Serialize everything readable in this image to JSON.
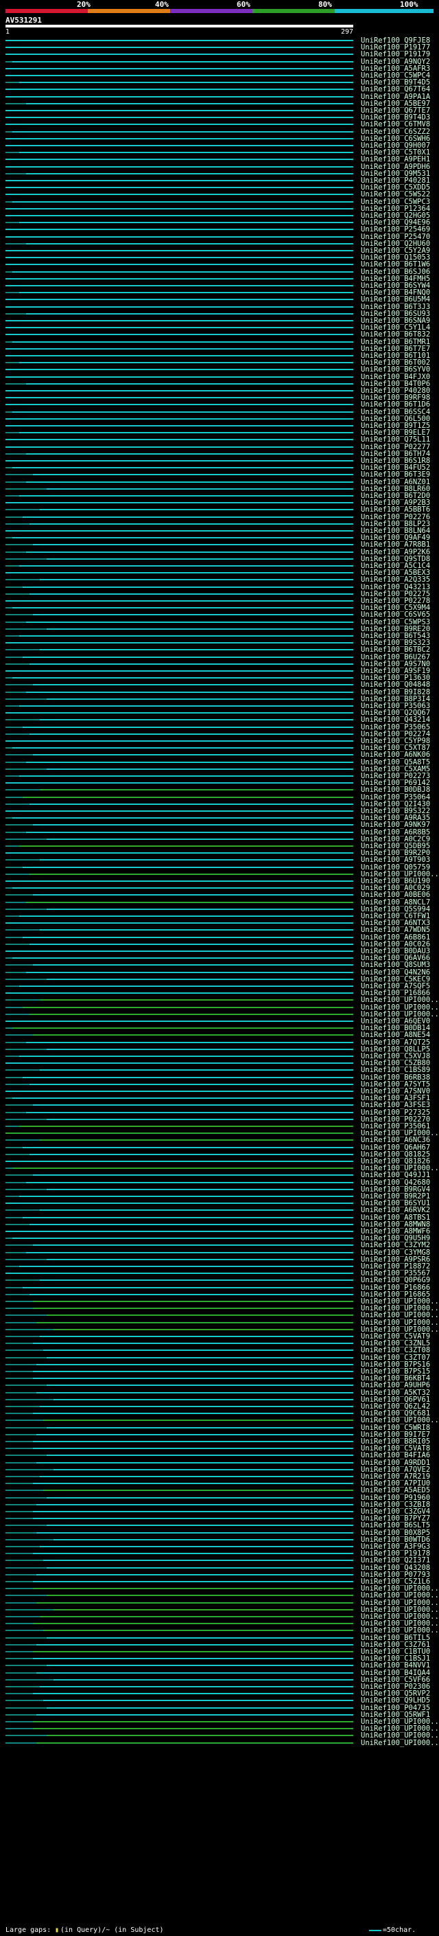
{
  "scale": {
    "ticks": [
      "20%",
      "40%",
      "60%",
      "80%",
      "100%"
    ],
    "colors": [
      "#d6172f",
      "#e07c17",
      "#7b2fbf",
      "#2e9e2a",
      "#19bcd3"
    ]
  },
  "query": {
    "name": "AV531291",
    "start": "1",
    "end": "297"
  },
  "colors": {
    "full": "#17c9c9",
    "partial": "#2ea82e",
    "gap": "#12857f"
  },
  "hits": [
    "UniRef100_Q9FJE8",
    "UniRef100_P19177",
    "UniRef100_P19179",
    "UniRef100_A9NQY2",
    "UniRef100_A5AFR3",
    "UniRef100_C5WPC4",
    "UniRef100_B9T4D5",
    "UniRef100_Q67T64",
    "UniRef100_A9PA1A",
    "UniRef100_A5BE97",
    "UniRef100_Q67TE7",
    "UniRef100_B9T4D3",
    "UniRef100_C6TMV8",
    "UniRef100_C6SZZ2",
    "UniRef100_C6SWH6",
    "UniRef100_Q9H007",
    "UniRef100_C5T0X1",
    "UniRef100_A9PEH1",
    "UniRef100_A9PDH6",
    "UniRef100_Q9M531",
    "UniRef100_P40281",
    "UniRef100_C5XDD5",
    "UniRef100_C5WS22",
    "UniRef100_C5WPC3",
    "UniRef100_P12364",
    "UniRef100_Q2HG05",
    "UniRef100_Q94E96",
    "UniRef100_P25469",
    "UniRef100_P25470",
    "UniRef100_Q2HU60",
    "UniRef100_C5Y2A9",
    "UniRef100_Q15053",
    "UniRef100_B6T1W6",
    "UniRef100_B6SJ06",
    "UniRef100_B4FMH5",
    "UniRef100_B6SYW4",
    "UniRef100_B4FNQ0",
    "UniRef100_B6U5M4",
    "UniRef100_B6T3J3",
    "UniRef100_B6SU93",
    "UniRef100_B6SNA9",
    "UniRef100_C5Y1L4",
    "UniRef100_B6T832",
    "UniRef100_B6TMR1",
    "UniRef100_B6T7E7",
    "UniRef100_B6T101",
    "UniRef100_B6T002",
    "UniRef100_B6SYV0",
    "UniRef100_B4FJX0",
    "UniRef100_B4T0P6",
    "UniRef100_P40280",
    "UniRef100_B9RF98",
    "UniRef100_B6T1D6",
    "UniRef100_B6SSC4",
    "UniRef100_Q6L500",
    "UniRef100_B9T1Z5",
    "UniRef100_B9ELE7",
    "UniRef100_Q75L11",
    "UniRef100_P02277",
    "UniRef100_B6TH74",
    "UniRef100_B6S1R8",
    "UniRef100_B4FU52",
    "UniRef100_B6T3E9",
    "UniRef100_A6NZ01",
    "UniRef100_B8LR60",
    "UniRef100_B6T2D0",
    "UniRef100_A9P2B3",
    "UniRef100_A5BBT6",
    "UniRef100_P02276",
    "UniRef100_B8LP23",
    "UniRef100_B8LN64",
    "UniRef100_Q9AF49",
    "UniRef100_A7R8B1",
    "UniRef100_A9P2K6",
    "UniRef100_Q9STD8",
    "UniRef100_A5C1C4",
    "UniRef100_A5BEX3",
    "UniRef100_A2Q335",
    "UniRef100_Q43213",
    "UniRef100_P02275",
    "UniRef100_P02278",
    "UniRef100_C5X9M4",
    "UniRef100_C6SV65",
    "UniRef100_C5WPS3",
    "UniRef100_B9RE20",
    "UniRef100_B6T543",
    "UniRef100_B9S323",
    "UniRef100_B6TBC2",
    "UniRef100_B6U267",
    "UniRef100_A9S7N0",
    "UniRef100_A9SF19",
    "UniRef100_P13630",
    "UniRef100_Q04848",
    "UniRef100_B9I828",
    "UniRef100_B8P3I4",
    "UniRef100_P35063",
    "UniRef100_Q2QQ67",
    "UniRef100_Q43214",
    "UniRef100_P35065",
    "UniRef100_P02274",
    "UniRef100_C5YP98",
    "UniRef100_C5XT87",
    "UniRef100_A6NK06",
    "UniRef100_Q5A8T5",
    "UniRef100_C5XAM5",
    "UniRef100_P02273",
    "UniRef100_P69142",
    "UniRef100_B0DBJ8",
    "UniRef100_P35064",
    "UniRef100_Q2I430",
    "UniRef100_B9S322",
    "UniRef100_A9RA35",
    "UniRef100_A9NK97",
    "UniRef100_A6R8B5",
    "UniRef100_A0C2C9",
    "UniRef100_Q5DB95",
    "UniRef100_B9R2P0",
    "UniRef100_A9T903",
    "UniRef100_Q05759",
    "UniRef100_UPI000...",
    "UniRef100_B6U190",
    "UniRef100_A0C029",
    "UniRef100_A0BE06",
    "UniRef100_A8NCL7",
    "UniRef100_Q5S994",
    "UniRef100_C6TFW1",
    "UniRef100_A6NTX3",
    "UniRef100_A7WDN5",
    "UniRef100_A6B861",
    "UniRef100_A0C026",
    "UniRef100_B0DAU3",
    "UniRef100_Q6AV66",
    "UniRef100_Q8SUM3",
    "UniRef100_Q4N2N6",
    "UniRef100_C5KEC9",
    "UniRef100_A7SQF5",
    "UniRef100_P16866",
    "UniRef100_UPI000...",
    "UniRef100_UPI000...",
    "UniRef100_UPI000...",
    "UniRef100_A6QEV0",
    "UniRef100_B0DB14",
    "UniRef100_A8NE54",
    "UniRef100_A7QT25",
    "UniRef100_Q8LLP5",
    "UniRef100_C5XVJ8",
    "UniRef100_C5ZB80",
    "UniRef100_C1BS89",
    "UniRef100_B6RB38",
    "UniRef100_A7SYT5",
    "UniRef100_A7SNV0",
    "UniRef100_A3FSF1",
    "UniRef100_A3FSE3",
    "UniRef100_P27325",
    "UniRef100_P02270",
    "UniRef100_P35061",
    "UniRef100_UPI000...",
    "UniRef100_A6NC36",
    "UniRef100_Q6AH67",
    "UniRef100_Q81825",
    "UniRef100_Q81826",
    "UniRef100_UPI000...",
    "UniRef100_Q49JJ1",
    "UniRef100_Q42680",
    "UniRef100_B9RGV4",
    "UniRef100_B9R2P1",
    "UniRef100_B6SYU1",
    "UniRef100_A6RVK2",
    "UniRef100_A8TBS1",
    "UniRef100_A8MWN8",
    "UniRef100_A8MWF6",
    "UniRef100_Q9U5H9",
    "UniRef100_C3ZYM2",
    "UniRef100_C3YMG8",
    "UniRef100_A9PSR6",
    "UniRef100_P18872",
    "UniRef100_P35567",
    "UniRef100_Q0P6G9",
    "UniRef100_P16866",
    "UniRef100_P16865",
    "UniRef100_UPI000...",
    "UniRef100_UPI000...",
    "UniRef100_UPI000...",
    "UniRef100_UPI000...",
    "UniRef100_UPI000...",
    "UniRef100_C5VAT9",
    "UniRef100_C3ZNL5",
    "UniRef100_C3ZT08",
    "UniRef100_C3ZT07",
    "UniRef100_B7PS16",
    "UniRef100_B7PS15",
    "UniRef100_B6KBT4",
    "UniRef100_A9UHP6",
    "UniRef100_A5KT32",
    "UniRef100_Q6PV61",
    "UniRef100_Q6ZL42",
    "UniRef100_Q9C681",
    "UniRef100_UPI000...",
    "UniRef100_C5WRI8",
    "UniRef100_B9I7E7",
    "UniRef100_B8RI05",
    "UniRef100_C5VAT8",
    "UniRef100_B4FIA6",
    "UniRef100_A9RDD1",
    "UniRef100_A7QVE2",
    "UniRef100_A7R219",
    "UniRef100_A7PIU0",
    "UniRef100_A5AED5",
    "UniRef100_P91960",
    "UniRef100_C3ZBI8",
    "UniRef100_C3ZGV4",
    "UniRef100_B7PYZ7",
    "UniRef100_B6SLT5",
    "UniRef100_B0X8P5",
    "UniRef100_B0WTD6",
    "UniRef100_A3F9G3",
    "UniRef100_P19178",
    "UniRef100_Q2I371",
    "UniRef100_Q43208",
    "UniRef100_P07793",
    "UniRef100_C5Z1L6",
    "UniRef100_UPI000...",
    "UniRef100_UPI000...",
    "UniRef100_UPI000...",
    "UniRef100_UPI000...",
    "UniRef100_UPI000...",
    "UniRef100_UPI000...",
    "UniRef100_UPI000...",
    "UniRef100_B6TIL5",
    "UniRef100_C3Z761",
    "UniRef100_C1BTU0",
    "UniRef100_C1BSJ1",
    "UniRef100_B4NVV1",
    "UniRef100_B4IQA4",
    "UniRef100_C5VF66",
    "UniRef100_P02306",
    "UniRef100_Q5RVP2",
    "UniRef100_Q9LHD5",
    "UniRef100_P04735",
    "UniRef100_Q5RWF1",
    "UniRef100_UPI000...",
    "UniRef100_UPI000...",
    "UniRef100_UPI000...",
    "UniRef100_UPI000..."
  ],
  "legend": {
    "text1": "Large gaps: ",
    "marker": "▮",
    "text2": "(in Query)/~ (in Subject)",
    "text3": "=50char."
  }
}
